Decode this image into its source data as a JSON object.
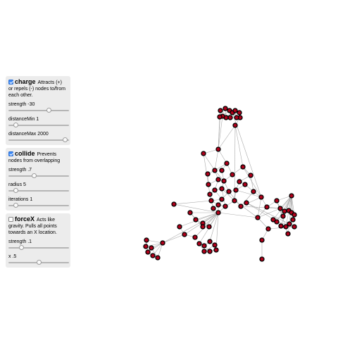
{
  "forces": [
    {
      "name": "charge",
      "checked": true,
      "description": "Attracts (+) or repels (-) nodes to/from each other.",
      "controls": [
        {
          "label": "strength -30",
          "value": 0.7
        },
        {
          "label": "distanceMin 1",
          "value": 0.03
        },
        {
          "label": "distanceMax 2000",
          "value": 1.0
        }
      ]
    },
    {
      "name": "collide",
      "checked": true,
      "description": "Prevents nodes from overlapping",
      "controls": [
        {
          "label": "strength .7",
          "value": 0.5
        },
        {
          "label": "radius 5",
          "value": 0.05
        },
        {
          "label": "iterations 1",
          "value": 0.03
        }
      ]
    },
    {
      "name": "forceX",
      "checked": false,
      "description": "Acts like gravity. Pulls all points towards an X location.",
      "controls": [
        {
          "label": "strength .1",
          "value": 0.1
        },
        {
          "label": "x .5",
          "value": 0.5
        }
      ]
    }
  ],
  "graph": {
    "node_color": "#b0001a",
    "link_color": "#a9a9a9"
  }
}
